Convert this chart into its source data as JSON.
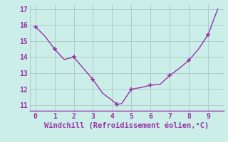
{
  "x": [
    0,
    0.5,
    1,
    1.5,
    2,
    2.5,
    3,
    3.5,
    4,
    4.25,
    4.5,
    5,
    5.5,
    6,
    6.5,
    7,
    7.5,
    8,
    8.5,
    9,
    9.5
  ],
  "y": [
    15.9,
    15.3,
    14.5,
    13.85,
    14.0,
    13.3,
    12.6,
    11.75,
    11.3,
    11.05,
    11.1,
    12.0,
    12.1,
    12.25,
    12.3,
    12.85,
    13.3,
    13.8,
    14.5,
    15.4,
    17.0
  ],
  "line_color": "#9933aa",
  "marker_x": [
    0,
    1,
    2,
    3,
    4.25,
    5,
    6,
    7,
    8,
    9
  ],
  "marker_y": [
    15.9,
    14.5,
    14.0,
    12.6,
    11.05,
    12.0,
    12.25,
    12.85,
    13.8,
    15.4
  ],
  "bg_color": "#cceee8",
  "grid_color": "#aacccc",
  "xlabel": "Windchill (Refroidissement éolien,°C)",
  "xlabel_color": "#9933aa",
  "tick_color": "#9933aa",
  "xlim": [
    -0.3,
    9.8
  ],
  "ylim": [
    10.65,
    17.3
  ],
  "xticks": [
    0,
    1,
    2,
    3,
    4,
    5,
    6,
    7,
    8,
    9
  ],
  "yticks": [
    11,
    12,
    13,
    14,
    15,
    16,
    17
  ],
  "font_size": 7.0,
  "xlabel_fontsize": 7.5
}
